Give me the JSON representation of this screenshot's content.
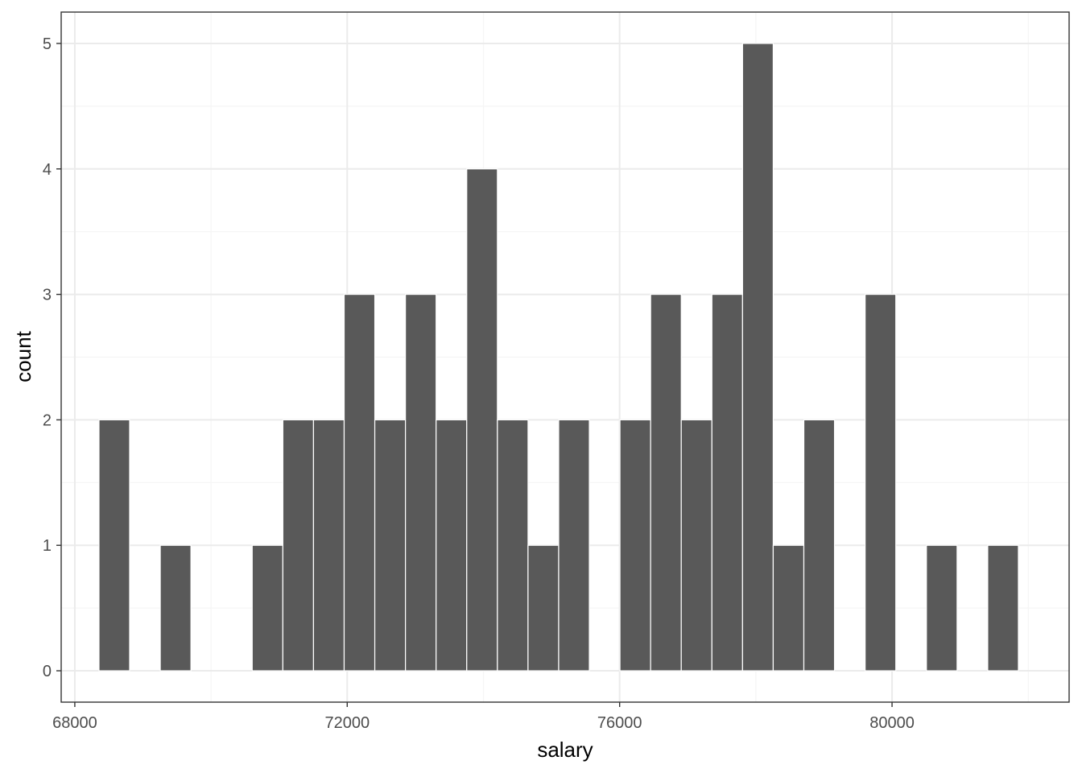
{
  "chart_data": {
    "type": "bar",
    "subtype": "histogram",
    "xlabel": "salary",
    "ylabel": "count",
    "xlim": [
      67800,
      82600
    ],
    "ylim": [
      -0.25,
      5.25
    ],
    "x_ticks": [
      68000,
      72000,
      76000,
      80000
    ],
    "x_tick_labels": [
      "68000",
      "72000",
      "76000",
      "80000"
    ],
    "y_ticks": [
      0,
      1,
      2,
      3,
      4,
      5
    ],
    "y_tick_labels": [
      "0",
      "1",
      "2",
      "3",
      "4",
      "5"
    ],
    "grid": true,
    "bar_color": "#595959",
    "bar_outline": "#ffffff",
    "bin_width": 450,
    "bin_centers": [
      68580,
      69480,
      70830,
      71280,
      71730,
      72180,
      72630,
      73080,
      73530,
      73980,
      74430,
      74880,
      75330,
      76230,
      76680,
      77130,
      77580,
      78030,
      78480,
      78930,
      79830,
      80730,
      81630
    ],
    "values": [
      2,
      1,
      1,
      2,
      2,
      3,
      2,
      3,
      2,
      4,
      2,
      1,
      2,
      2,
      3,
      2,
      3,
      5,
      1,
      2,
      3,
      1,
      1
    ]
  },
  "colors": {
    "panel_background": "#ffffff",
    "grid_major": "#ebebeb",
    "grid_minor": "#f5f5f5",
    "panel_border": "#333333"
  }
}
